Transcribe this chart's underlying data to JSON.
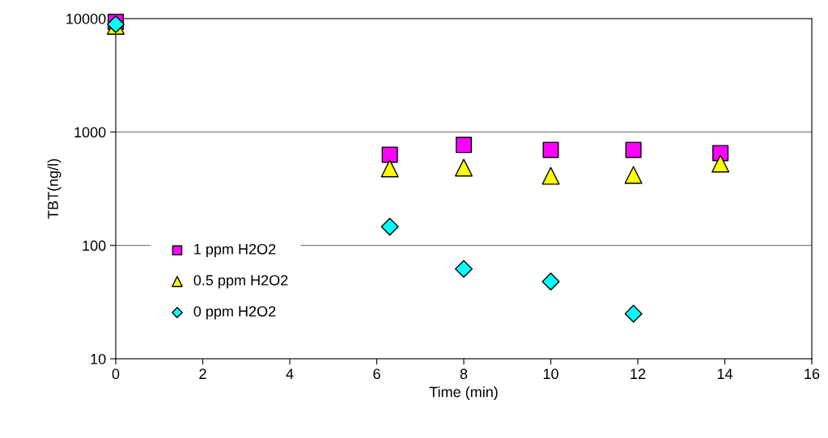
{
  "chart_data": {
    "type": "scatter",
    "xlabel": "Time (min)",
    "ylabel": "TBT(ng/l)",
    "log": "y",
    "xlim": [
      0,
      16
    ],
    "xticks": [
      0,
      2,
      4,
      6,
      8,
      10,
      12,
      14,
      16
    ],
    "ylim": [
      10,
      10000
    ],
    "yticks": [
      10,
      100,
      1000,
      10000
    ],
    "grid": "y",
    "legend": "bottom left",
    "series": [
      {
        "name": "1 ppm H2O2",
        "color": "#ff00ff",
        "marker": "square",
        "x": [
          0,
          6.3,
          8,
          10,
          11.9,
          13.9
        ],
        "values": [
          9350,
          631,
          769,
          696,
          696,
          652
        ]
      },
      {
        "name": "0.5 ppm H2O2",
        "color": "#ffff00",
        "marker": "triangle",
        "x": [
          0,
          6.3,
          8,
          10,
          11.9,
          13.9
        ],
        "values": [
          8630,
          477,
          485,
          411,
          418,
          526
        ]
      },
      {
        "name": "0 ppm H2O2",
        "color": "#00ffff",
        "marker": "diamond",
        "x": [
          0,
          6.3,
          8,
          10,
          11.9
        ],
        "values": [
          8910,
          146,
          62,
          48,
          25
        ]
      }
    ]
  }
}
